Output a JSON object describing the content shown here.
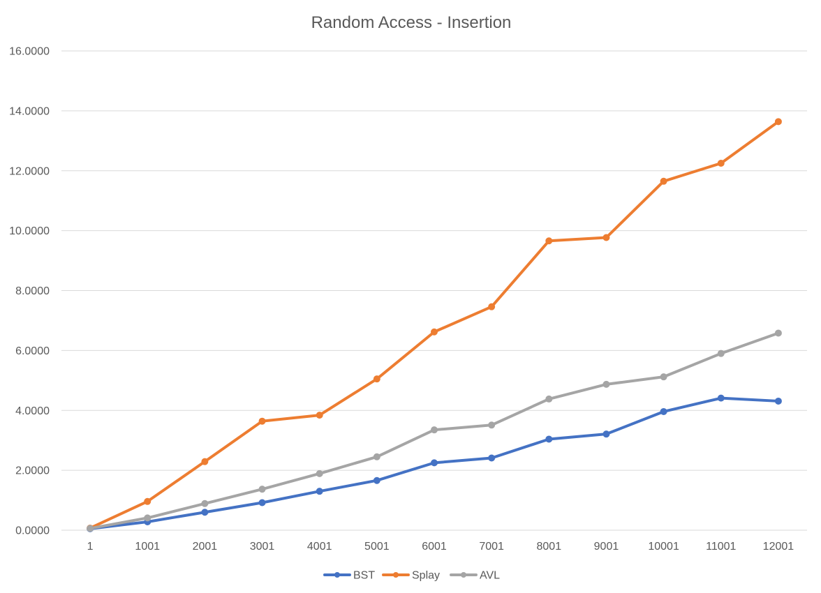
{
  "chart_data": {
    "type": "line",
    "title": "Random  Access - Insertion",
    "xlabel": "",
    "ylabel": "",
    "categories": [
      "1",
      "1001",
      "2001",
      "3001",
      "4001",
      "5001",
      "6001",
      "7001",
      "8001",
      "9001",
      "10001",
      "11001",
      "12001"
    ],
    "y_ticks": [
      "0.0000",
      "2.0000",
      "4.0000",
      "6.0000",
      "8.0000",
      "10.0000",
      "12.0000",
      "14.0000",
      "16.0000"
    ],
    "ylim": [
      0,
      16
    ],
    "grid": true,
    "legend_position": "bottom",
    "series": [
      {
        "name": "BST",
        "color": "#4472c4",
        "values": [
          0.05,
          0.28,
          0.6,
          0.92,
          1.3,
          1.66,
          2.25,
          2.41,
          3.04,
          3.21,
          3.96,
          4.41,
          4.31
        ]
      },
      {
        "name": "Splay",
        "color": "#ed7d31",
        "values": [
          0.07,
          0.96,
          2.29,
          3.64,
          3.84,
          5.05,
          6.62,
          7.46,
          9.66,
          9.77,
          11.65,
          12.25,
          13.64
        ]
      },
      {
        "name": "AVL",
        "color": "#a5a5a5",
        "values": [
          0.06,
          0.41,
          0.89,
          1.37,
          1.89,
          2.45,
          3.35,
          3.51,
          4.38,
          4.87,
          5.12,
          5.9,
          6.58
        ]
      }
    ]
  }
}
